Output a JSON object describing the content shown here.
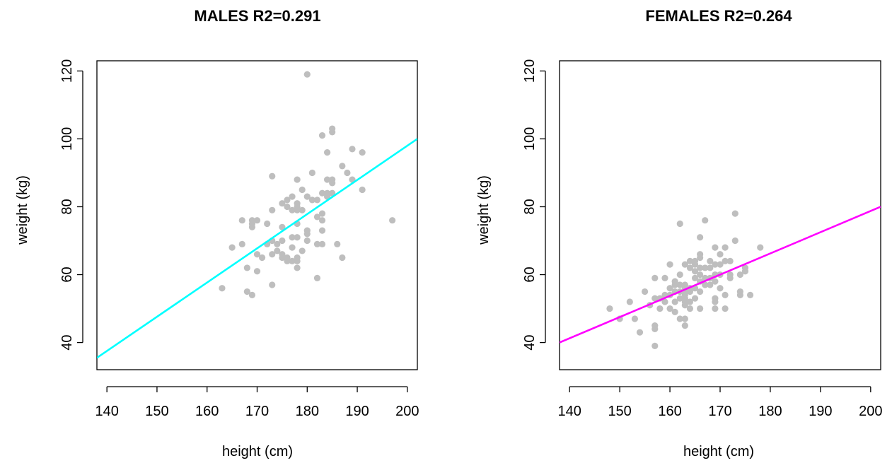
{
  "chart_data": [
    {
      "type": "scatter",
      "title": "MALES R2=0.291",
      "xlabel": "height (cm)",
      "ylabel": "weight (kg)",
      "xlim": [
        138,
        202
      ],
      "ylim": [
        32,
        123
      ],
      "xticks": [
        "140",
        "150",
        "160",
        "170",
        "180",
        "190",
        "200"
      ],
      "yticks": [
        "40",
        "60",
        "80",
        "100",
        "120"
      ],
      "grid": false,
      "point_color": "#BEBEBE",
      "line_color": "#00FFFF",
      "regression_line": {
        "x": [
          138,
          202
        ],
        "y": [
          35.5,
          100
        ]
      },
      "points": [
        [
          163,
          56
        ],
        [
          165,
          68
        ],
        [
          167,
          69
        ],
        [
          167,
          76
        ],
        [
          168,
          55
        ],
        [
          168,
          62
        ],
        [
          169,
          54
        ],
        [
          169,
          74
        ],
        [
          169,
          75
        ],
        [
          169,
          76
        ],
        [
          170,
          61
        ],
        [
          170,
          66
        ],
        [
          170,
          76
        ],
        [
          171,
          65
        ],
        [
          172,
          69
        ],
        [
          172,
          75
        ],
        [
          173,
          57
        ],
        [
          173,
          66
        ],
        [
          173,
          70
        ],
        [
          173,
          79
        ],
        [
          173,
          89
        ],
        [
          174,
          67
        ],
        [
          174,
          69
        ],
        [
          175,
          65
        ],
        [
          175,
          66
        ],
        [
          175,
          70
        ],
        [
          175,
          74
        ],
        [
          175,
          81
        ],
        [
          176,
          64
        ],
        [
          176,
          65
        ],
        [
          176,
          80
        ],
        [
          176,
          82
        ],
        [
          177,
          64
        ],
        [
          177,
          68
        ],
        [
          177,
          71
        ],
        [
          177,
          79
        ],
        [
          177,
          83
        ],
        [
          178,
          62
        ],
        [
          178,
          64
        ],
        [
          178,
          65
        ],
        [
          178,
          71
        ],
        [
          178,
          75
        ],
        [
          178,
          79
        ],
        [
          178,
          80
        ],
        [
          178,
          81
        ],
        [
          178,
          88
        ],
        [
          179,
          67
        ],
        [
          179,
          79
        ],
        [
          179,
          85
        ],
        [
          180,
          70
        ],
        [
          180,
          72
        ],
        [
          180,
          73
        ],
        [
          180,
          83
        ],
        [
          180,
          119
        ],
        [
          181,
          82
        ],
        [
          181,
          90
        ],
        [
          182,
          59
        ],
        [
          182,
          69
        ],
        [
          182,
          77
        ],
        [
          182,
          82
        ],
        [
          183,
          69
        ],
        [
          183,
          73
        ],
        [
          183,
          76
        ],
        [
          183,
          78
        ],
        [
          183,
          84
        ],
        [
          183,
          101
        ],
        [
          184,
          83
        ],
        [
          184,
          84
        ],
        [
          184,
          88
        ],
        [
          184,
          96
        ],
        [
          185,
          84
        ],
        [
          185,
          87
        ],
        [
          185,
          88
        ],
        [
          185,
          102
        ],
        [
          185,
          103
        ],
        [
          186,
          69
        ],
        [
          187,
          65
        ],
        [
          187,
          92
        ],
        [
          188,
          90
        ],
        [
          189,
          88
        ],
        [
          189,
          97
        ],
        [
          191,
          85
        ],
        [
          191,
          96
        ],
        [
          197,
          76
        ]
      ]
    },
    {
      "type": "scatter",
      "title": "FEMALES R2=0.264",
      "xlabel": "height (cm)",
      "ylabel": "weight (kg)",
      "xlim": [
        138,
        202
      ],
      "ylim": [
        32,
        123
      ],
      "xticks": [
        "140",
        "150",
        "160",
        "170",
        "180",
        "190",
        "200"
      ],
      "yticks": [
        "40",
        "60",
        "80",
        "100",
        "120"
      ],
      "grid": false,
      "point_color": "#BEBEBE",
      "line_color": "#FF00FF",
      "regression_line": {
        "x": [
          138,
          202
        ],
        "y": [
          40,
          80
        ]
      },
      "points": [
        [
          148,
          50
        ],
        [
          150,
          47
        ],
        [
          152,
          52
        ],
        [
          153,
          47
        ],
        [
          154,
          43
        ],
        [
          155,
          55
        ],
        [
          156,
          51
        ],
        [
          157,
          39
        ],
        [
          157,
          44
        ],
        [
          157,
          45
        ],
        [
          157,
          53
        ],
        [
          157,
          59
        ],
        [
          158,
          50
        ],
        [
          158,
          53
        ],
        [
          159,
          52
        ],
        [
          159,
          54
        ],
        [
          159,
          59
        ],
        [
          160,
          50
        ],
        [
          160,
          54
        ],
        [
          160,
          56
        ],
        [
          160,
          63
        ],
        [
          161,
          49
        ],
        [
          161,
          52
        ],
        [
          161,
          55
        ],
        [
          161,
          57
        ],
        [
          161,
          58
        ],
        [
          162,
          47
        ],
        [
          162,
          53
        ],
        [
          162,
          55
        ],
        [
          162,
          57
        ],
        [
          162,
          60
        ],
        [
          162,
          75
        ],
        [
          163,
          45
        ],
        [
          163,
          47
        ],
        [
          163,
          51
        ],
        [
          163,
          52
        ],
        [
          163,
          53
        ],
        [
          163,
          54
        ],
        [
          163,
          55
        ],
        [
          163,
          56
        ],
        [
          163,
          57
        ],
        [
          163,
          63
        ],
        [
          164,
          50
        ],
        [
          164,
          52
        ],
        [
          164,
          55
        ],
        [
          164,
          56
        ],
        [
          164,
          62
        ],
        [
          164,
          64
        ],
        [
          165,
          53
        ],
        [
          165,
          56
        ],
        [
          165,
          59
        ],
        [
          165,
          61
        ],
        [
          165,
          63
        ],
        [
          165,
          64
        ],
        [
          166,
          50
        ],
        [
          166,
          55
        ],
        [
          166,
          58
        ],
        [
          166,
          60
        ],
        [
          166,
          62
        ],
        [
          166,
          65
        ],
        [
          166,
          66
        ],
        [
          166,
          71
        ],
        [
          167,
          57
        ],
        [
          167,
          59
        ],
        [
          167,
          62
        ],
        [
          167,
          76
        ],
        [
          168,
          57
        ],
        [
          168,
          59
        ],
        [
          168,
          62
        ],
        [
          168,
          64
        ],
        [
          169,
          50
        ],
        [
          169,
          52
        ],
        [
          169,
          53
        ],
        [
          169,
          58
        ],
        [
          169,
          60
        ],
        [
          169,
          63
        ],
        [
          169,
          68
        ],
        [
          170,
          56
        ],
        [
          170,
          60
        ],
        [
          170,
          63
        ],
        [
          170,
          66
        ],
        [
          171,
          50
        ],
        [
          171,
          54
        ],
        [
          171,
          64
        ],
        [
          171,
          68
        ],
        [
          172,
          59
        ],
        [
          172,
          60
        ],
        [
          172,
          64
        ],
        [
          173,
          70
        ],
        [
          173,
          78
        ],
        [
          174,
          54
        ],
        [
          174,
          55
        ],
        [
          174,
          60
        ],
        [
          175,
          61
        ],
        [
          175,
          62
        ],
        [
          176,
          54
        ],
        [
          178,
          68
        ]
      ]
    }
  ]
}
